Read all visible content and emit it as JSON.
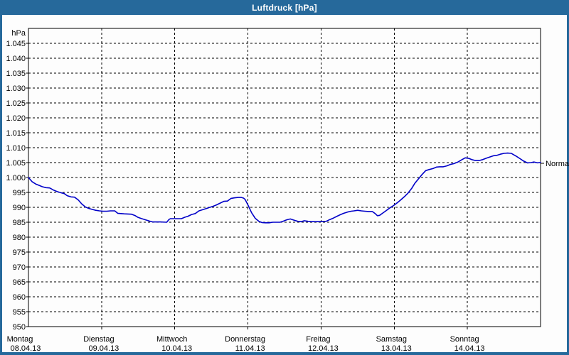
{
  "window": {
    "title": "Luftdruck [hPa]"
  },
  "colors": {
    "frame_blue": "#26699b",
    "curve_blue": "#0000c8",
    "plot_bg": "#fdfdfd",
    "grid_black": "#000000",
    "title_text": "#ffffff"
  },
  "chart_data": {
    "type": "line",
    "title": "Luftdruck [hPa]",
    "ylabel": "hPa",
    "xlabel": "",
    "ylim": [
      950,
      1050
    ],
    "y_tick_step": 5,
    "grid": "dashed",
    "legend_position": "right-edge-marker",
    "y_ticks": [
      {
        "value": 1045,
        "label": "1.045"
      },
      {
        "value": 1040,
        "label": "1.040"
      },
      {
        "value": 1035,
        "label": "1.035"
      },
      {
        "value": 1030,
        "label": "1.030"
      },
      {
        "value": 1025,
        "label": "1.025"
      },
      {
        "value": 1020,
        "label": "1.020"
      },
      {
        "value": 1015,
        "label": "1.015"
      },
      {
        "value": 1010,
        "label": "1.010"
      },
      {
        "value": 1005,
        "label": "1.005"
      },
      {
        "value": 1000,
        "label": "1.000"
      },
      {
        "value": 995,
        "label": "995"
      },
      {
        "value": 990,
        "label": "990"
      },
      {
        "value": 985,
        "label": "985"
      },
      {
        "value": 980,
        "label": "980"
      },
      {
        "value": 975,
        "label": "975"
      },
      {
        "value": 970,
        "label": "970"
      },
      {
        "value": 965,
        "label": "965"
      },
      {
        "value": 960,
        "label": "960"
      },
      {
        "value": 955,
        "label": "955"
      },
      {
        "value": 950,
        "label": "950"
      }
    ],
    "x_days": [
      {
        "name": "Montag",
        "date": "08.04.13"
      },
      {
        "name": "Dienstag",
        "date": "09.04.13"
      },
      {
        "name": "Mittwoch",
        "date": "10.04.13"
      },
      {
        "name": "Donnerstag",
        "date": "11.04.13"
      },
      {
        "name": "Freitag",
        "date": "12.04.13"
      },
      {
        "name": "Samstag",
        "date": "13.04.13"
      },
      {
        "name": "Sonntag",
        "date": "14.04.13"
      }
    ],
    "normal_label": "Normal",
    "normal_value": 1004.8,
    "series": [
      {
        "name": "Luftdruck",
        "color": "#0000c8",
        "points": [
          [
            0.0,
            1000.0
          ],
          [
            0.05,
            998.6
          ],
          [
            0.1,
            997.8
          ],
          [
            0.15,
            997.3
          ],
          [
            0.19,
            996.9
          ],
          [
            0.24,
            996.6
          ],
          [
            0.29,
            996.5
          ],
          [
            0.34,
            995.8
          ],
          [
            0.39,
            995.3
          ],
          [
            0.44,
            994.9
          ],
          [
            0.49,
            994.6
          ],
          [
            0.53,
            993.9
          ],
          [
            0.58,
            993.5
          ],
          [
            0.63,
            993.4
          ],
          [
            0.68,
            992.5
          ],
          [
            0.73,
            991.1
          ],
          [
            0.78,
            990.1
          ],
          [
            0.83,
            989.6
          ],
          [
            0.87,
            989.3
          ],
          [
            0.92,
            989.0
          ],
          [
            0.97,
            988.8
          ],
          [
            1.02,
            988.7
          ],
          [
            1.07,
            988.7
          ],
          [
            1.12,
            988.8
          ],
          [
            1.18,
            988.8
          ],
          [
            1.22,
            988.0
          ],
          [
            1.31,
            987.8
          ],
          [
            1.41,
            987.7
          ],
          [
            1.46,
            987.2
          ],
          [
            1.5,
            986.6
          ],
          [
            1.55,
            986.2
          ],
          [
            1.6,
            985.8
          ],
          [
            1.65,
            985.4
          ],
          [
            1.7,
            985.1
          ],
          [
            1.8,
            985.1
          ],
          [
            1.89,
            985.0
          ],
          [
            1.92,
            985.9
          ],
          [
            1.94,
            986.2
          ],
          [
            1.99,
            986.2
          ],
          [
            2.09,
            986.2
          ],
          [
            2.14,
            986.7
          ],
          [
            2.18,
            987.0
          ],
          [
            2.23,
            987.6
          ],
          [
            2.28,
            987.9
          ],
          [
            2.33,
            988.8
          ],
          [
            2.38,
            989.2
          ],
          [
            2.43,
            989.6
          ],
          [
            2.48,
            990.0
          ],
          [
            2.52,
            990.3
          ],
          [
            2.57,
            990.8
          ],
          [
            2.62,
            991.4
          ],
          [
            2.67,
            992.0
          ],
          [
            2.72,
            992.1
          ],
          [
            2.77,
            993.0
          ],
          [
            2.82,
            993.2
          ],
          [
            2.87,
            993.3
          ],
          [
            2.91,
            993.3
          ],
          [
            2.94,
            993.1
          ],
          [
            2.96,
            992.7
          ],
          [
            3.0,
            990.8
          ],
          [
            3.05,
            988.2
          ],
          [
            3.1,
            986.3
          ],
          [
            3.15,
            985.3
          ],
          [
            3.19,
            984.9
          ],
          [
            3.24,
            984.8
          ],
          [
            3.29,
            984.8
          ],
          [
            3.34,
            985.0
          ],
          [
            3.44,
            985.0
          ],
          [
            3.49,
            985.4
          ],
          [
            3.53,
            985.8
          ],
          [
            3.58,
            986.1
          ],
          [
            3.63,
            985.7
          ],
          [
            3.68,
            985.3
          ],
          [
            3.73,
            985.2
          ],
          [
            3.77,
            985.5
          ],
          [
            3.82,
            985.3
          ],
          [
            3.87,
            985.2
          ],
          [
            3.97,
            985.2
          ],
          [
            4.07,
            985.3
          ],
          [
            4.12,
            985.9
          ],
          [
            4.17,
            986.4
          ],
          [
            4.21,
            986.9
          ],
          [
            4.26,
            987.5
          ],
          [
            4.31,
            988.0
          ],
          [
            4.36,
            988.4
          ],
          [
            4.41,
            988.7
          ],
          [
            4.45,
            988.8
          ],
          [
            4.5,
            989.0
          ],
          [
            4.55,
            988.8
          ],
          [
            4.6,
            988.7
          ],
          [
            4.65,
            988.6
          ],
          [
            4.7,
            988.6
          ],
          [
            4.74,
            987.9
          ],
          [
            4.77,
            987.2
          ],
          [
            4.8,
            987.3
          ],
          [
            4.84,
            988.0
          ],
          [
            4.89,
            988.9
          ],
          [
            4.94,
            989.8
          ],
          [
            4.99,
            990.6
          ],
          [
            5.04,
            991.5
          ],
          [
            5.09,
            992.5
          ],
          [
            5.14,
            993.6
          ],
          [
            5.19,
            994.8
          ],
          [
            5.24,
            996.4
          ],
          [
            5.28,
            998.0
          ],
          [
            5.33,
            999.5
          ],
          [
            5.38,
            1001.0
          ],
          [
            5.43,
            1002.3
          ],
          [
            5.48,
            1002.7
          ],
          [
            5.53,
            1003.0
          ],
          [
            5.58,
            1003.5
          ],
          [
            5.62,
            1003.6
          ],
          [
            5.67,
            1003.6
          ],
          [
            5.72,
            1003.9
          ],
          [
            5.77,
            1004.4
          ],
          [
            5.82,
            1004.7
          ],
          [
            5.87,
            1005.2
          ],
          [
            5.92,
            1005.9
          ],
          [
            5.97,
            1006.6
          ],
          [
            6.02,
            1006.4
          ],
          [
            6.06,
            1006.0
          ],
          [
            6.11,
            1005.7
          ],
          [
            6.16,
            1005.7
          ],
          [
            6.21,
            1006.0
          ],
          [
            6.26,
            1006.5
          ],
          [
            6.31,
            1006.9
          ],
          [
            6.36,
            1007.3
          ],
          [
            6.4,
            1007.4
          ],
          [
            6.45,
            1007.8
          ],
          [
            6.5,
            1008.1
          ],
          [
            6.55,
            1008.2
          ],
          [
            6.6,
            1008.1
          ],
          [
            6.62,
            1007.8
          ],
          [
            6.67,
            1007.1
          ],
          [
            6.72,
            1006.3
          ],
          [
            6.77,
            1005.5
          ],
          [
            6.82,
            1004.9
          ],
          [
            6.87,
            1005.0
          ],
          [
            6.91,
            1005.2
          ],
          [
            6.96,
            1004.9
          ],
          [
            7.0,
            1005.1
          ]
        ]
      }
    ]
  }
}
